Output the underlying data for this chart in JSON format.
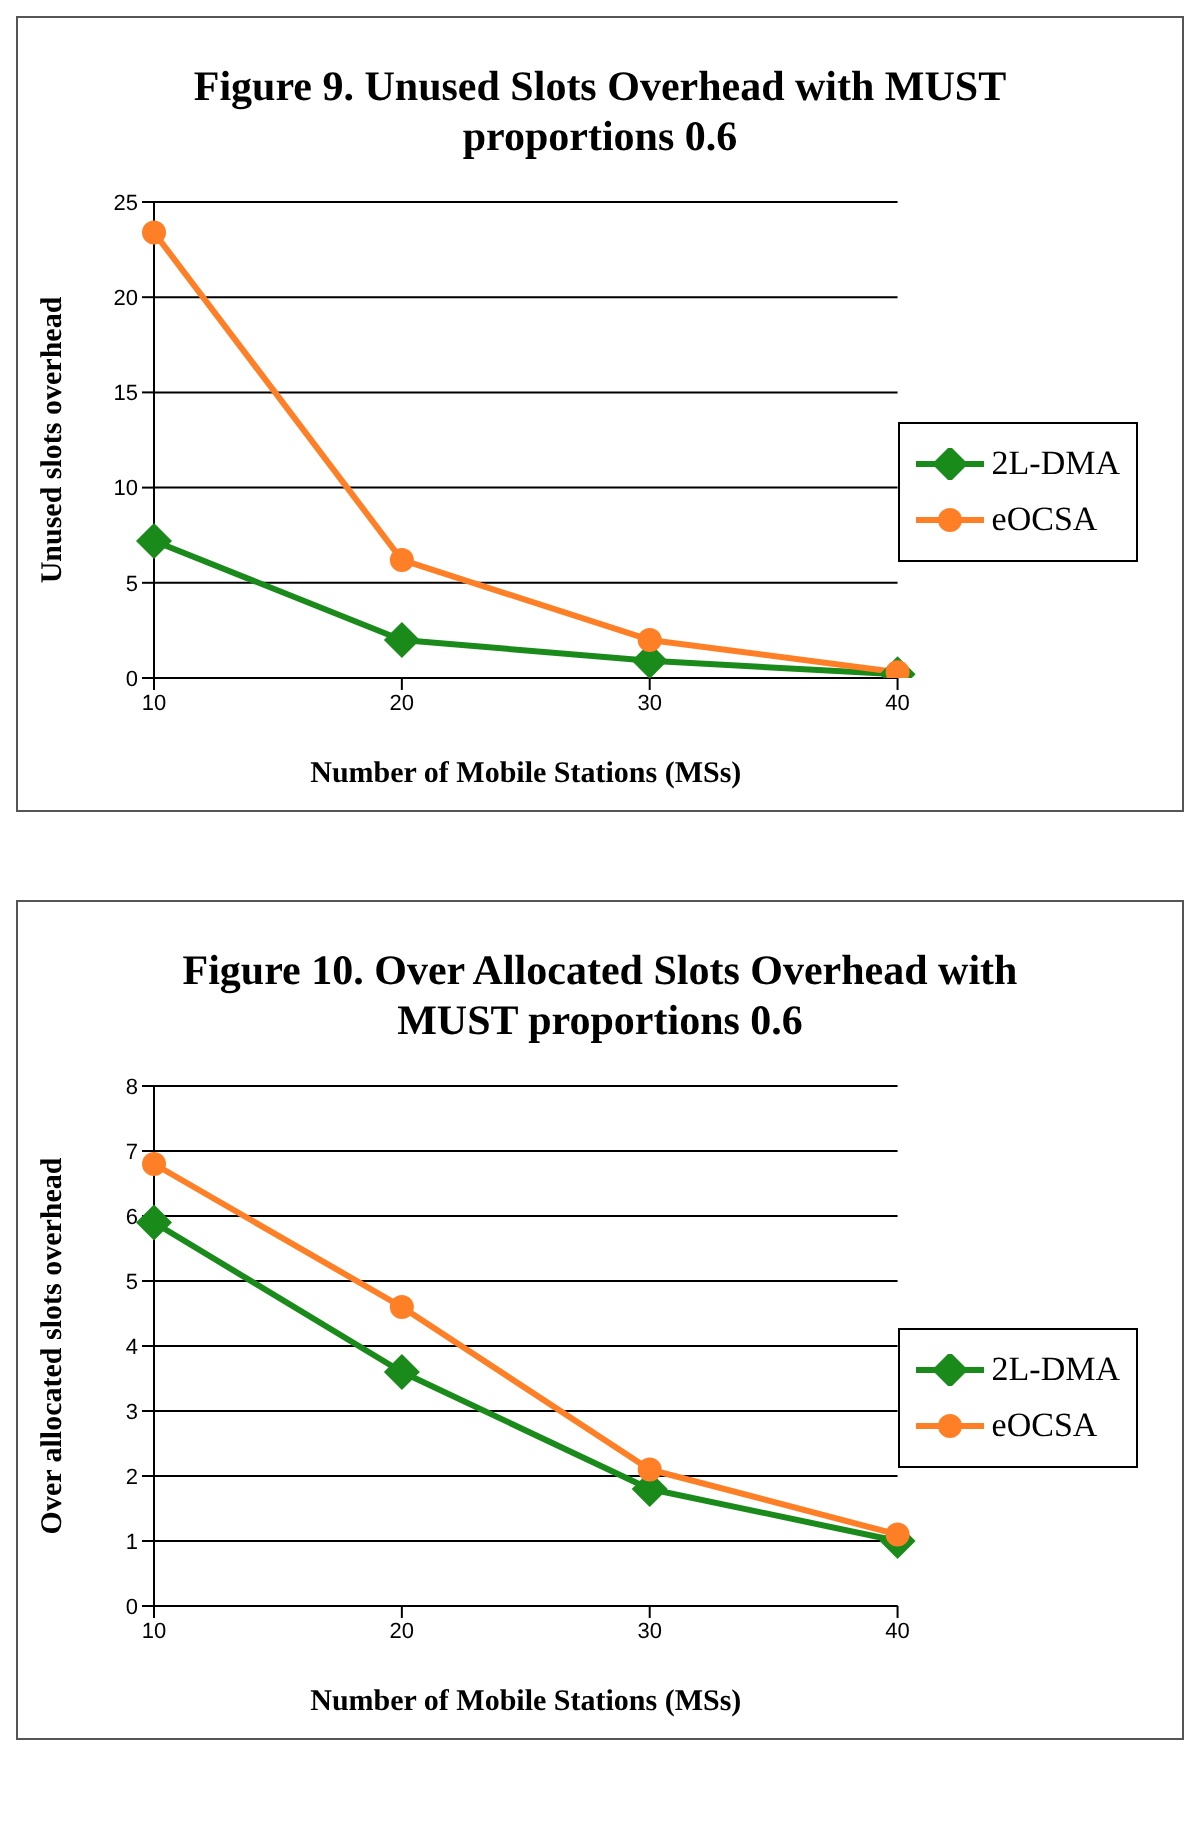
{
  "chart_data": [
    {
      "type": "line",
      "title": "Figure 9. Unused Slots Overhead with MUST proportions 0.6",
      "xlabel": "Number of Mobile Stations (MSs)",
      "ylabel": "Unused slots overhead",
      "categories": [
        "10",
        "20",
        "30",
        "40"
      ],
      "series": [
        {
          "name": "2L-DMA",
          "color": "#1a8a1a",
          "marker": "diamond",
          "values": [
            7.2,
            2.0,
            0.9,
            0.2
          ]
        },
        {
          "name": "eOCSA",
          "color": "#ff7f27",
          "marker": "circle",
          "values": [
            23.4,
            6.2,
            2.0,
            0.3
          ]
        }
      ],
      "ylim": [
        0,
        25
      ],
      "yticks": [
        0,
        5,
        10,
        15,
        20,
        25
      ],
      "grid": "y",
      "legend": "right"
    },
    {
      "type": "line",
      "title": "Figure 10. Over Allocated Slots Overhead with MUST proportions 0.6",
      "xlabel": "Number of Mobile Stations (MSs)",
      "ylabel": "Over allocated slots overhead",
      "categories": [
        "10",
        "20",
        "30",
        "40"
      ],
      "series": [
        {
          "name": "2L-DMA",
          "color": "#1a8a1a",
          "marker": "diamond",
          "values": [
            5.9,
            3.6,
            1.8,
            1.0
          ]
        },
        {
          "name": "eOCSA",
          "color": "#ff7f27",
          "marker": "circle",
          "values": [
            6.8,
            4.6,
            2.1,
            1.1
          ]
        }
      ],
      "ylim": [
        0,
        8
      ],
      "yticks": [
        0,
        1,
        2,
        3,
        4,
        5,
        6,
        7,
        8
      ],
      "grid": "y",
      "legend": "right"
    }
  ]
}
